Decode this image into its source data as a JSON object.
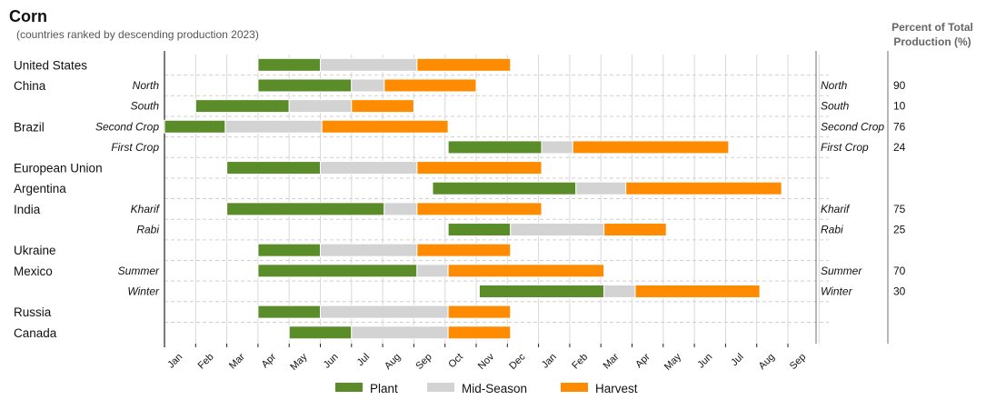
{
  "chart_data": {
    "type": "gantt",
    "title": "Corn",
    "subtitle": "(countries ranked by descending production 2023)",
    "pct_header": [
      "Percent of Total",
      "Production (%)"
    ],
    "x_ticks": [
      "Jan",
      "Feb",
      "Mar",
      "Apr",
      "May",
      "Jun",
      "Jul",
      "Aug",
      "Sep",
      "Oct",
      "Nov",
      "Dec",
      "Jan",
      "Feb",
      "Mar",
      "Apr",
      "May",
      "Jun",
      "Jul",
      "Aug",
      "Sep"
    ],
    "x_range_months": [
      0,
      21
    ],
    "legend": [
      {
        "label": "Plant",
        "color": "#5b8c2a"
      },
      {
        "label": "Mid-Season",
        "color": "#d3d3d3"
      },
      {
        "label": "Harvest",
        "color": "#ff8c00"
      }
    ],
    "rows": [
      {
        "country": "United States",
        "sub": "",
        "pct": "",
        "plant": [
          3.0,
          5.0
        ],
        "mid": [
          5.0,
          8.1
        ],
        "harvest": [
          8.1,
          11.1
        ]
      },
      {
        "country": "China",
        "sub": "North",
        "pct": "90",
        "plant": [
          3.0,
          6.0
        ],
        "mid": [
          6.0,
          7.05
        ],
        "harvest": [
          7.05,
          10.0
        ]
      },
      {
        "country": "",
        "sub": "South",
        "pct": "10",
        "plant": [
          1.0,
          4.0
        ],
        "mid": [
          4.0,
          6.0
        ],
        "harvest": [
          6.0,
          8.0
        ]
      },
      {
        "country": "Brazil",
        "sub": "Second Crop",
        "pct": "76",
        "plant": [
          0.0,
          1.95
        ],
        "mid": [
          1.95,
          5.05
        ],
        "harvest": [
          5.05,
          9.1
        ]
      },
      {
        "country": "",
        "sub": "First Crop",
        "pct": "24",
        "plant": [
          9.1,
          12.1
        ],
        "mid": [
          12.1,
          13.1
        ],
        "harvest": [
          13.1,
          18.1
        ]
      },
      {
        "country": "European Union",
        "sub": "",
        "pct": "",
        "plant": [
          2.0,
          5.0
        ],
        "mid": [
          5.0,
          8.1
        ],
        "harvest": [
          8.1,
          12.1
        ]
      },
      {
        "country": "Argentina",
        "sub": "",
        "pct": "",
        "plant": [
          8.6,
          13.2
        ],
        "mid": [
          13.2,
          14.8
        ],
        "harvest": [
          14.8,
          19.8
        ]
      },
      {
        "country": "India",
        "sub": "Kharif",
        "pct": "75",
        "plant": [
          2.0,
          7.05
        ],
        "mid": [
          7.05,
          8.1
        ],
        "harvest": [
          8.1,
          12.1
        ]
      },
      {
        "country": "",
        "sub": "Rabi",
        "pct": "25",
        "plant": [
          9.1,
          11.1
        ],
        "mid": [
          11.1,
          14.1
        ],
        "harvest": [
          14.1,
          16.1
        ]
      },
      {
        "country": "Ukraine",
        "sub": "",
        "pct": "",
        "plant": [
          3.0,
          5.0
        ],
        "mid": [
          5.0,
          8.1
        ],
        "harvest": [
          8.1,
          11.1
        ]
      },
      {
        "country": "Mexico",
        "sub": "Summer",
        "pct": "70",
        "plant": [
          3.0,
          8.1
        ],
        "mid": [
          8.1,
          9.1
        ],
        "harvest": [
          9.1,
          14.1
        ]
      },
      {
        "country": "",
        "sub": "Winter",
        "pct": "30",
        "plant": [
          10.1,
          14.1
        ],
        "mid": [
          14.1,
          15.1
        ],
        "harvest": [
          15.1,
          19.1
        ]
      },
      {
        "country": "Russia",
        "sub": "",
        "pct": "",
        "plant": [
          3.0,
          5.0
        ],
        "mid": [
          5.0,
          9.1
        ],
        "harvest": [
          9.1,
          11.1
        ]
      },
      {
        "country": "Canada",
        "sub": "",
        "pct": "",
        "plant": [
          4.0,
          6.0
        ],
        "mid": [
          6.0,
          9.1
        ],
        "harvest": [
          9.1,
          11.1
        ]
      }
    ]
  }
}
